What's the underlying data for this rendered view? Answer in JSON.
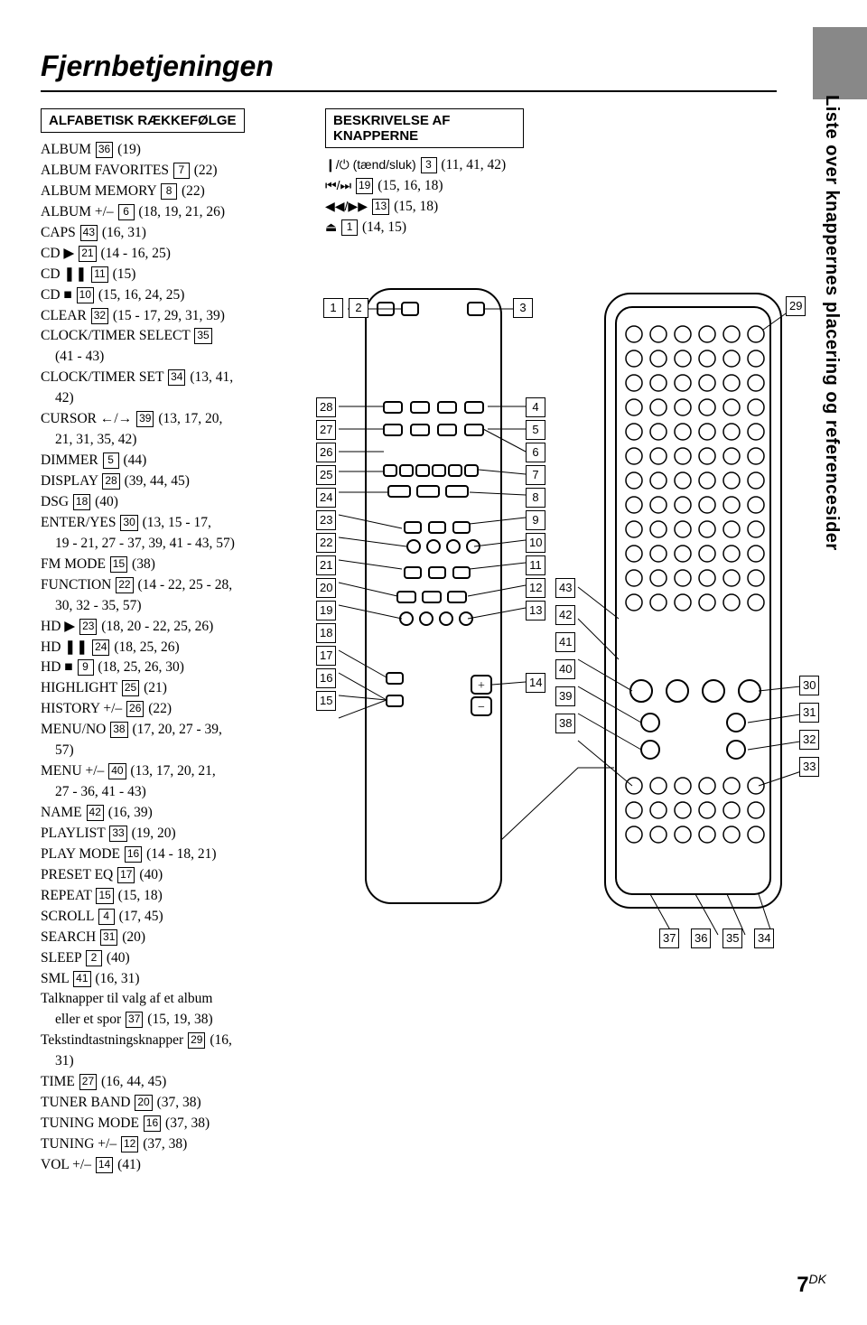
{
  "page": {
    "title": "Fjernbetjeningen",
    "vertical_label": "Liste over knappernes placering og referencesider",
    "page_number": "7",
    "page_suffix": "DK"
  },
  "left_header": "ALFABETISK RÆKKEFØLGE",
  "right_header": "BESKRIVELSE AF KNAPPERNE",
  "left_list": [
    {
      "text": "ALBUM",
      "num": "36",
      "suffix": " (19)"
    },
    {
      "text": "ALBUM FAVORITES",
      "num": "7",
      "suffix": " (22)"
    },
    {
      "text": "ALBUM MEMORY",
      "num": "8",
      "suffix": " (22)"
    },
    {
      "text": "ALBUM +/–",
      "num": "6",
      "suffix": " (18, 19, 21, 26)"
    },
    {
      "text": "CAPS",
      "num": "43",
      "suffix": " (16, 31)"
    },
    {
      "text": "CD ▶",
      "num": "21",
      "suffix": " (14 - 16, 25)"
    },
    {
      "text": "CD ❚❚",
      "num": "11",
      "suffix": " (15)"
    },
    {
      "text": "CD ■",
      "num": "10",
      "suffix": " (15, 16, 24, 25)"
    },
    {
      "text": "CLEAR",
      "num": "32",
      "suffix": " (15 - 17, 29, 31, 39)"
    },
    {
      "text": "CLOCK/TIMER SELECT",
      "num": "35",
      "suffix": ""
    },
    {
      "text": "",
      "num": "",
      "suffix": "(41 - 43)",
      "indent": true
    },
    {
      "text": "CLOCK/TIMER SET",
      "num": "34",
      "suffix": " (13, 41,"
    },
    {
      "text": "",
      "num": "",
      "suffix": "42)",
      "indent": true
    },
    {
      "text": "CURSOR ←/→",
      "num": "39",
      "suffix": " (13, 17, 20,"
    },
    {
      "text": "",
      "num": "",
      "suffix": "21, 31, 35, 42)",
      "indent": true
    },
    {
      "text": "DIMMER",
      "num": "5",
      "suffix": " (44)"
    },
    {
      "text": "DISPLAY",
      "num": "28",
      "suffix": " (39, 44, 45)"
    },
    {
      "text": "DSG",
      "num": "18",
      "suffix": " (40)"
    },
    {
      "text": "ENTER/YES",
      "num": "30",
      "suffix": " (13, 15 - 17,"
    },
    {
      "text": "",
      "num": "",
      "suffix": "19 - 21, 27 - 37, 39, 41 - 43, 57)",
      "indent": true
    },
    {
      "text": "FM MODE",
      "num": "15",
      "suffix": " (38)"
    },
    {
      "text": "FUNCTION",
      "num": "22",
      "suffix": " (14 - 22, 25 - 28,"
    },
    {
      "text": "",
      "num": "",
      "suffix": "30, 32 - 35, 57)",
      "indent": true
    },
    {
      "text": "HD ▶",
      "num": "23",
      "suffix": " (18, 20 - 22, 25, 26)"
    },
    {
      "text": "HD ❚❚",
      "num": "24",
      "suffix": " (18, 25, 26)"
    },
    {
      "text": "HD ■",
      "num": "9",
      "suffix": " (18, 25, 26, 30)"
    },
    {
      "text": "HIGHLIGHT",
      "num": "25",
      "suffix": " (21)"
    },
    {
      "text": "HISTORY +/–",
      "num": "26",
      "suffix": " (22)"
    },
    {
      "text": "MENU/NO",
      "num": "38",
      "suffix": " (17, 20, 27 - 39,"
    },
    {
      "text": "",
      "num": "",
      "suffix": "57)",
      "indent": true
    },
    {
      "text": "MENU +/–",
      "num": "40",
      "suffix": " (13, 17, 20, 21,"
    },
    {
      "text": "",
      "num": "",
      "suffix": "27 - 36, 41 - 43)",
      "indent": true
    },
    {
      "text": "NAME",
      "num": "42",
      "suffix": " (16, 39)"
    },
    {
      "text": "PLAYLIST",
      "num": "33",
      "suffix": " (19, 20)"
    },
    {
      "text": "PLAY MODE",
      "num": "16",
      "suffix": " (14 - 18, 21)"
    },
    {
      "text": "PRESET EQ",
      "num": "17",
      "suffix": " (40)"
    },
    {
      "text": "REPEAT",
      "num": "15",
      "suffix": " (15, 18)"
    },
    {
      "text": "SCROLL",
      "num": "4",
      "suffix": " (17, 45)"
    },
    {
      "text": "SEARCH",
      "num": "31",
      "suffix": " (20)"
    },
    {
      "text": "SLEEP",
      "num": "2",
      "suffix": " (40)"
    },
    {
      "text": "SML",
      "num": "41",
      "suffix": " (16, 31)"
    },
    {
      "text": "Talknapper til valg af et album",
      "num": "",
      "suffix": ""
    },
    {
      "text": "eller et spor",
      "num": "37",
      "suffix": " (15, 19, 38)",
      "indent": true
    },
    {
      "text": "Tekstindtastningsknapper",
      "num": "29",
      "suffix": " (16,"
    },
    {
      "text": "",
      "num": "",
      "suffix": "31)",
      "indent": true
    },
    {
      "text": "TIME",
      "num": "27",
      "suffix": " (16, 44, 45)"
    },
    {
      "text": "TUNER BAND",
      "num": "20",
      "suffix": " (37, 38)"
    },
    {
      "text": "TUNING MODE",
      "num": "16",
      "suffix": " (37, 38)"
    },
    {
      "text": "TUNING +/–",
      "num": "12",
      "suffix": " (37, 38)"
    },
    {
      "text": "VOL +/–",
      "num": "14",
      "suffix": " (41)"
    }
  ],
  "right_list": [
    {
      "pre": "❙/⏻ (tænd/sluk)",
      "num": "3",
      "suffix": " (11, 41, 42)"
    },
    {
      "pre": "⏮/⏭",
      "num": "19",
      "suffix": " (15, 16, 18)"
    },
    {
      "pre": "◀◀/▶▶",
      "num": "13",
      "suffix": " (15, 18)"
    },
    {
      "pre": "⏏",
      "num": "1",
      "suffix": " (14, 15)"
    }
  ],
  "callouts": {
    "top_left": [
      "1",
      "2"
    ],
    "top_mid": [
      "3"
    ],
    "top_right": [
      "29"
    ],
    "left_stack": [
      "28",
      "27",
      "26",
      "25",
      "24",
      "23",
      "22",
      "21",
      "20",
      "19",
      "18",
      "17",
      "16",
      "15"
    ],
    "mid_stack": [
      "4",
      "5",
      "6",
      "7",
      "8",
      "9",
      "10",
      "11",
      "12",
      "13",
      "14"
    ],
    "mid_right_stack": [
      "43",
      "42",
      "41",
      "40",
      "39",
      "38"
    ],
    "far_right_stack": [
      "30",
      "31",
      "32",
      "33"
    ],
    "bottom_right": [
      "37",
      "36",
      "35",
      "34"
    ]
  },
  "colors": {
    "grey_tab": "#888888",
    "text": "#000000",
    "bg": "#ffffff"
  }
}
